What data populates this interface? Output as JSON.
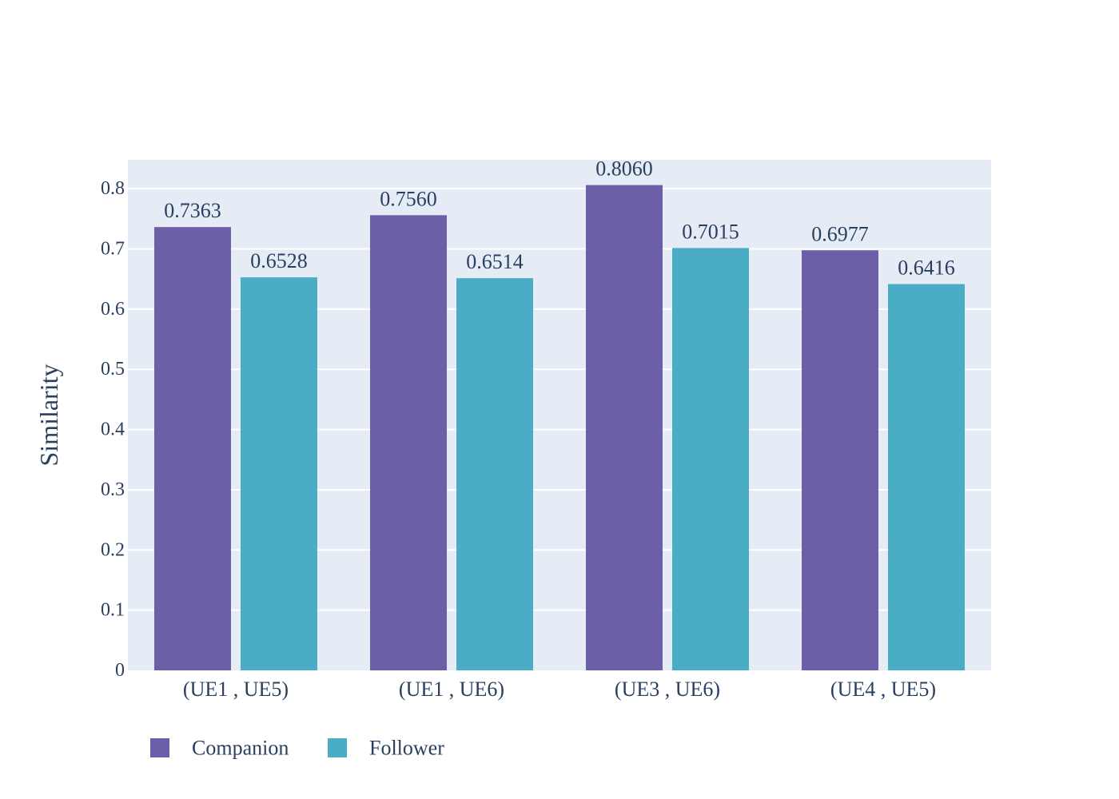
{
  "chart_data": {
    "type": "bar",
    "categories": [
      "(UE1 , UE5)",
      "(UE1 , UE6)",
      "(UE3 , UE6)",
      "(UE4 , UE5)"
    ],
    "series": [
      {
        "name": "Companion",
        "color": "#6c5fa7",
        "values": [
          0.7363,
          0.756,
          0.806,
          0.6977
        ],
        "labels": [
          "0.7363",
          "0.7560",
          "0.8060",
          "0.6977"
        ]
      },
      {
        "name": "Follower",
        "color": "#4bacc6",
        "values": [
          0.6528,
          0.6514,
          0.7015,
          0.6416
        ],
        "labels": [
          "0.6528",
          "0.6514",
          "0.7015",
          "0.6416"
        ]
      }
    ],
    "ylabel": "Similarity",
    "xlabel": "",
    "ylim": [
      0,
      0.848
    ],
    "yticks": [
      0,
      0.1,
      0.2,
      0.3,
      0.4,
      0.5,
      0.6,
      0.7,
      0.8
    ],
    "ytick_labels": [
      "0",
      "0.1",
      "0.2",
      "0.3",
      "0.4",
      "0.5",
      "0.6",
      "0.7",
      "0.8"
    ],
    "grid": true,
    "legend_position": "bottom-left",
    "plot_background": "#e5ecf6",
    "text_color": "#2a3f5f"
  }
}
